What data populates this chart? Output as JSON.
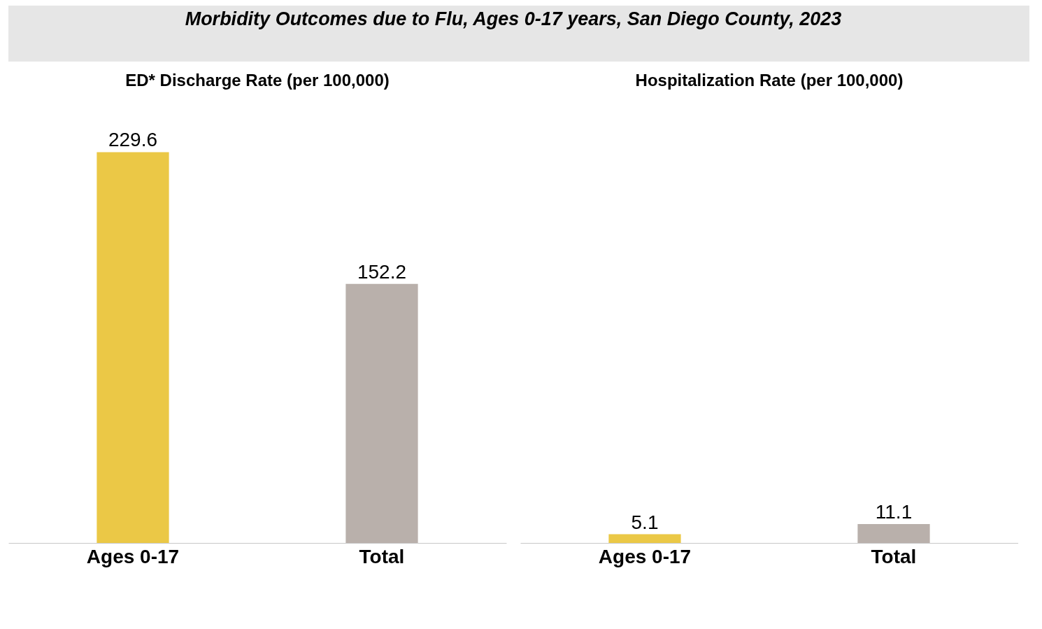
{
  "chart_data": [
    {
      "type": "bar",
      "title": "Morbidity Outcomes due to Flu, Ages 0-17 years, San Diego County, 2023",
      "subtitle": "ED* Discharge Rate (per 100,000)",
      "categories": [
        "Ages 0-17",
        "Total"
      ],
      "values": [
        229.6,
        152.2
      ],
      "colors": [
        "#ebc846",
        "#b9b0ab"
      ],
      "data_labels": true
    },
    {
      "type": "bar",
      "subtitle": "Hospitalization Rate (per 100,000)",
      "categories": [
        "Ages 0-17",
        "Total"
      ],
      "values": [
        5.1,
        11.1
      ],
      "colors": [
        "#ebc846",
        "#b9b0ab"
      ],
      "data_labels": true
    }
  ]
}
